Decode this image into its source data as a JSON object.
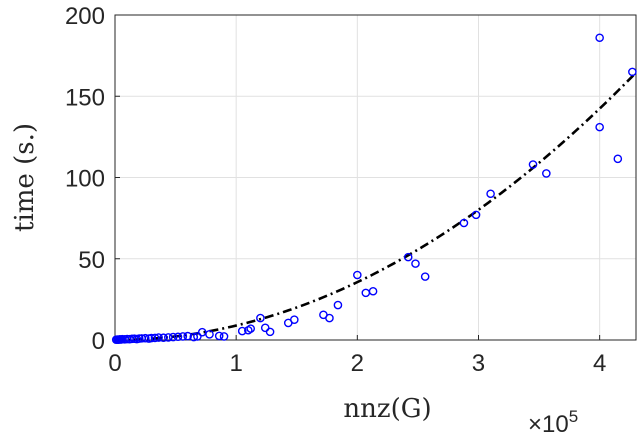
{
  "chart_data": {
    "type": "scatter",
    "xlabel": "nnz(G)",
    "ylabel": "time (s.)",
    "x_exponent_base": "×10",
    "x_exponent_power": "5",
    "xlim": [
      0,
      4.3
    ],
    "ylim": [
      0,
      200
    ],
    "xticks": [
      "0",
      "1",
      "2",
      "3",
      "4"
    ],
    "yticks": [
      "0",
      "50",
      "100",
      "150",
      "200"
    ],
    "grid": true,
    "marker_color": "#0000ff",
    "fit_color": "#000000",
    "series": [
      {
        "style": "circle-markers",
        "points": [
          [
            0.01,
            0.2
          ],
          [
            0.02,
            0.3
          ],
          [
            0.03,
            0.2
          ],
          [
            0.04,
            0.4
          ],
          [
            0.05,
            0.3
          ],
          [
            0.06,
            0.5
          ],
          [
            0.08,
            0.4
          ],
          [
            0.1,
            0.6
          ],
          [
            0.12,
            0.5
          ],
          [
            0.14,
            0.7
          ],
          [
            0.16,
            0.8
          ],
          [
            0.18,
            0.6
          ],
          [
            0.2,
            0.9
          ],
          [
            0.22,
            1.0
          ],
          [
            0.25,
            1.1
          ],
          [
            0.28,
            0.9
          ],
          [
            0.3,
            1.2
          ],
          [
            0.33,
            1.3
          ],
          [
            0.36,
            1.5
          ],
          [
            0.4,
            1.4
          ],
          [
            0.44,
            1.6
          ],
          [
            0.48,
            1.8
          ],
          [
            0.52,
            2.0
          ],
          [
            0.56,
            2.2
          ],
          [
            0.6,
            2.4
          ],
          [
            0.65,
            1.8
          ],
          [
            0.68,
            2.2
          ],
          [
            0.72,
            4.8
          ],
          [
            0.78,
            3.5
          ],
          [
            0.86,
            2.5
          ],
          [
            0.9,
            2.2
          ],
          [
            1.05,
            5.5
          ],
          [
            1.1,
            6.0
          ],
          [
            1.12,
            7.0
          ],
          [
            1.2,
            13.5
          ],
          [
            1.24,
            7.5
          ],
          [
            1.28,
            5.0
          ],
          [
            1.43,
            10.5
          ],
          [
            1.48,
            12.5
          ],
          [
            1.72,
            15.5
          ],
          [
            1.77,
            13.5
          ],
          [
            1.84,
            21.5
          ],
          [
            2.0,
            40.0
          ],
          [
            2.07,
            29.0
          ],
          [
            2.13,
            30.0
          ],
          [
            2.42,
            51.0
          ],
          [
            2.48,
            47.0
          ],
          [
            2.56,
            39.0
          ],
          [
            2.88,
            72.0
          ],
          [
            2.98,
            77.0
          ],
          [
            3.1,
            90.0
          ],
          [
            3.45,
            108.0
          ],
          [
            3.56,
            102.5
          ],
          [
            4.0,
            186.0
          ],
          [
            4.0,
            131.0
          ],
          [
            4.15,
            111.5
          ],
          [
            4.27,
            165.0
          ]
        ]
      },
      {
        "style": "dash-dot-fit",
        "fit_coefficient": 8.9,
        "fit_exponent": 2
      }
    ]
  }
}
